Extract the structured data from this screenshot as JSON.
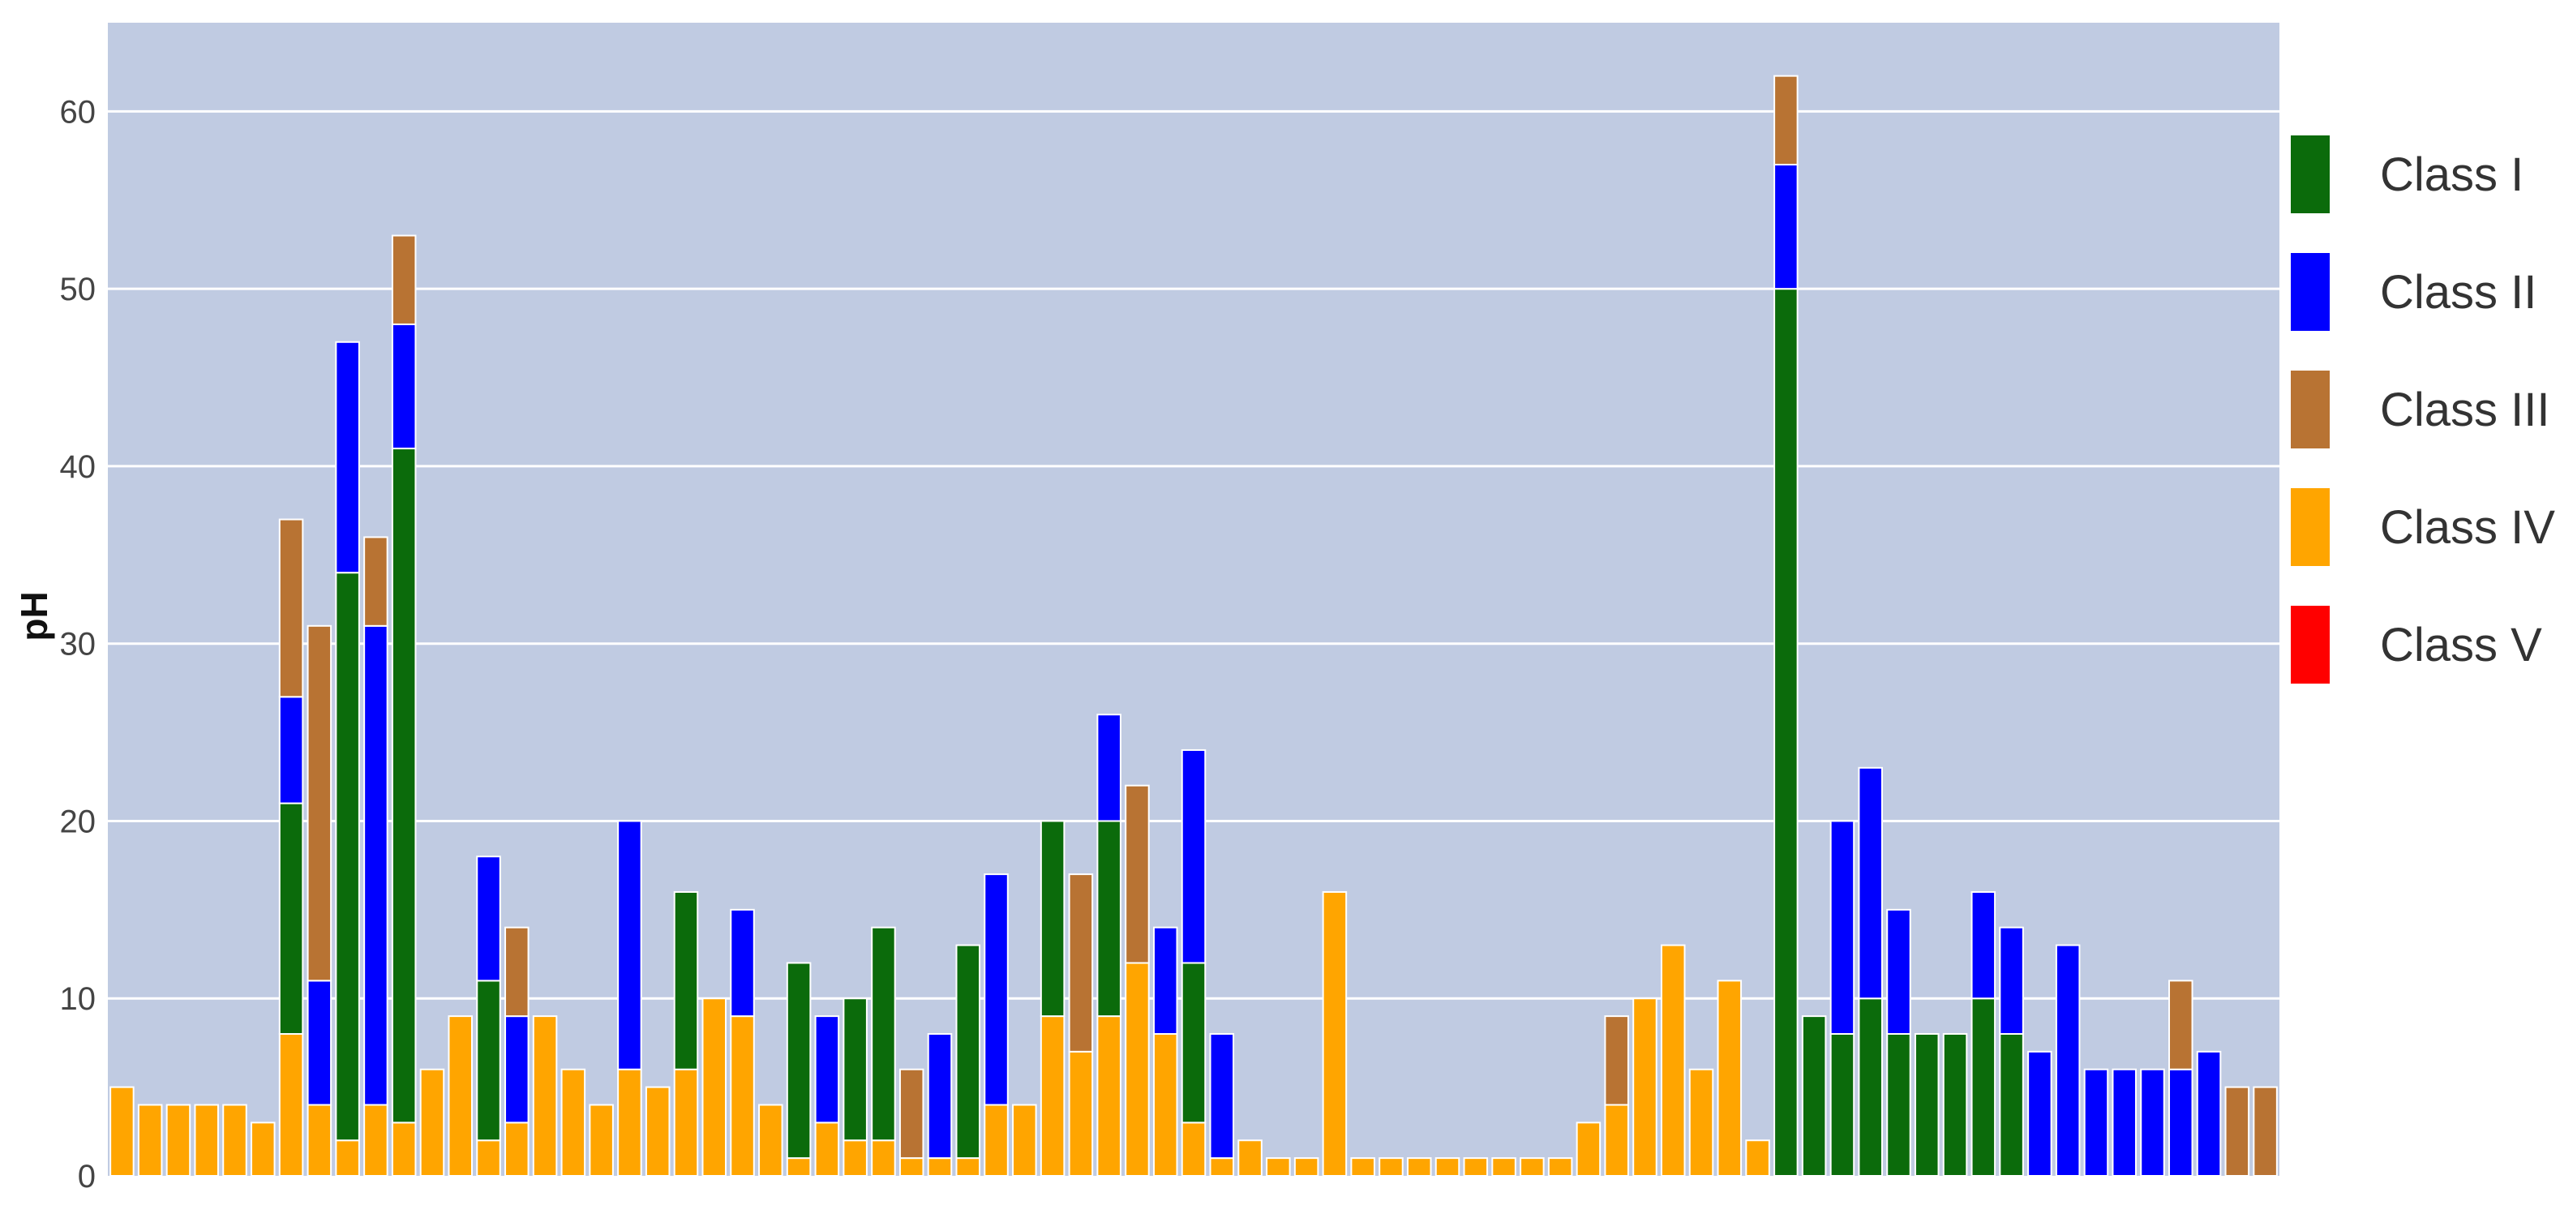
{
  "chart_data": {
    "type": "bar",
    "stacked": true,
    "ylabel": "pH",
    "ylim": [
      0,
      65
    ],
    "yticks": [
      0,
      10,
      20,
      30,
      40,
      50,
      60
    ],
    "grid": true,
    "legend_position": "right",
    "series": [
      {
        "name": "Class I",
        "color": "#0b6b0b"
      },
      {
        "name": "Class II",
        "color": "#0000ff"
      },
      {
        "name": "Class III",
        "color": "#b87333"
      },
      {
        "name": "Class IV",
        "color": "#ffa500"
      },
      {
        "name": "Class V",
        "color": "#ff0000"
      }
    ],
    "bars": [
      {
        "segments": [
          [
            "Class IV",
            5
          ]
        ]
      },
      {
        "segments": [
          [
            "Class IV",
            4
          ]
        ]
      },
      {
        "segments": [
          [
            "Class IV",
            4
          ]
        ]
      },
      {
        "segments": [
          [
            "Class IV",
            4
          ]
        ]
      },
      {
        "segments": [
          [
            "Class IV",
            4
          ]
        ]
      },
      {
        "segments": [
          [
            "Class IV",
            3
          ]
        ]
      },
      {
        "segments": [
          [
            "Class IV",
            8
          ],
          [
            "Class I",
            13
          ],
          [
            "Class II",
            6
          ],
          [
            "Class III",
            10
          ]
        ]
      },
      {
        "segments": [
          [
            "Class IV",
            4
          ],
          [
            "Class II",
            7
          ],
          [
            "Class III",
            20
          ]
        ]
      },
      {
        "segments": [
          [
            "Class IV",
            2
          ],
          [
            "Class I",
            32
          ],
          [
            "Class II",
            13
          ]
        ]
      },
      {
        "segments": [
          [
            "Class IV",
            4
          ],
          [
            "Class II",
            27
          ],
          [
            "Class III",
            5
          ]
        ]
      },
      {
        "segments": [
          [
            "Class IV",
            3
          ],
          [
            "Class I",
            38
          ],
          [
            "Class II",
            7
          ],
          [
            "Class III",
            5
          ]
        ]
      },
      {
        "segments": [
          [
            "Class IV",
            6
          ]
        ]
      },
      {
        "segments": [
          [
            "Class IV",
            9
          ]
        ]
      },
      {
        "segments": [
          [
            "Class IV",
            2
          ],
          [
            "Class I",
            9
          ],
          [
            "Class II",
            7
          ]
        ]
      },
      {
        "segments": [
          [
            "Class IV",
            3
          ],
          [
            "Class II",
            6
          ],
          [
            "Class III",
            5
          ]
        ]
      },
      {
        "segments": [
          [
            "Class IV",
            9
          ]
        ]
      },
      {
        "segments": [
          [
            "Class IV",
            6
          ]
        ]
      },
      {
        "segments": [
          [
            "Class IV",
            4
          ]
        ]
      },
      {
        "segments": [
          [
            "Class IV",
            6
          ],
          [
            "Class II",
            14
          ]
        ]
      },
      {
        "segments": [
          [
            "Class IV",
            5
          ]
        ]
      },
      {
        "segments": [
          [
            "Class IV",
            6
          ],
          [
            "Class I",
            10
          ]
        ]
      },
      {
        "segments": [
          [
            "Class IV",
            10
          ]
        ]
      },
      {
        "segments": [
          [
            "Class IV",
            9
          ],
          [
            "Class II",
            6
          ]
        ]
      },
      {
        "segments": [
          [
            "Class IV",
            4
          ]
        ]
      },
      {
        "segments": [
          [
            "Class IV",
            1
          ],
          [
            "Class I",
            11
          ]
        ]
      },
      {
        "segments": [
          [
            "Class IV",
            3
          ],
          [
            "Class II",
            6
          ]
        ]
      },
      {
        "segments": [
          [
            "Class IV",
            2
          ],
          [
            "Class I",
            8
          ]
        ]
      },
      {
        "segments": [
          [
            "Class IV",
            2
          ],
          [
            "Class I",
            12
          ]
        ]
      },
      {
        "segments": [
          [
            "Class IV",
            1
          ],
          [
            "Class III",
            5
          ]
        ]
      },
      {
        "segments": [
          [
            "Class IV",
            1
          ],
          [
            "Class II",
            7
          ]
        ]
      },
      {
        "segments": [
          [
            "Class IV",
            1
          ],
          [
            "Class I",
            12
          ]
        ]
      },
      {
        "segments": [
          [
            "Class IV",
            4
          ],
          [
            "Class II",
            13
          ]
        ]
      },
      {
        "segments": [
          [
            "Class IV",
            4
          ]
        ]
      },
      {
        "segments": [
          [
            "Class IV",
            9
          ],
          [
            "Class I",
            11
          ]
        ]
      },
      {
        "segments": [
          [
            "Class IV",
            7
          ],
          [
            "Class III",
            10
          ]
        ]
      },
      {
        "segments": [
          [
            "Class IV",
            9
          ],
          [
            "Class I",
            11
          ],
          [
            "Class II",
            6
          ]
        ]
      },
      {
        "segments": [
          [
            "Class IV",
            12
          ],
          [
            "Class III",
            10
          ]
        ]
      },
      {
        "segments": [
          [
            "Class IV",
            8
          ],
          [
            "Class II",
            6
          ]
        ]
      },
      {
        "segments": [
          [
            "Class IV",
            3
          ],
          [
            "Class I",
            9
          ],
          [
            "Class II",
            12
          ]
        ]
      },
      {
        "segments": [
          [
            "Class IV",
            1
          ],
          [
            "Class II",
            7
          ]
        ]
      },
      {
        "segments": [
          [
            "Class IV",
            2
          ]
        ]
      },
      {
        "segments": [
          [
            "Class IV",
            1
          ]
        ]
      },
      {
        "segments": [
          [
            "Class IV",
            1
          ]
        ]
      },
      {
        "segments": [
          [
            "Class IV",
            16
          ]
        ]
      },
      {
        "segments": [
          [
            "Class IV",
            1
          ]
        ]
      },
      {
        "segments": [
          [
            "Class IV",
            1
          ]
        ]
      },
      {
        "segments": [
          [
            "Class IV",
            1
          ]
        ]
      },
      {
        "segments": [
          [
            "Class IV",
            1
          ]
        ]
      },
      {
        "segments": [
          [
            "Class IV",
            1
          ]
        ]
      },
      {
        "segments": [
          [
            "Class IV",
            1
          ]
        ]
      },
      {
        "segments": [
          [
            "Class IV",
            1
          ]
        ]
      },
      {
        "segments": [
          [
            "Class IV",
            1
          ]
        ]
      },
      {
        "segments": [
          [
            "Class IV",
            3
          ]
        ]
      },
      {
        "segments": [
          [
            "Class IV",
            4
          ],
          [
            "Class III",
            5
          ]
        ]
      },
      {
        "segments": [
          [
            "Class IV",
            10
          ]
        ]
      },
      {
        "segments": [
          [
            "Class IV",
            13
          ]
        ]
      },
      {
        "segments": [
          [
            "Class IV",
            6
          ]
        ]
      },
      {
        "segments": [
          [
            "Class IV",
            11
          ]
        ]
      },
      {
        "segments": [
          [
            "Class IV",
            2
          ]
        ]
      },
      {
        "segments": [
          [
            "Class I",
            50
          ],
          [
            "Class II",
            7
          ],
          [
            "Class III",
            5
          ]
        ]
      },
      {
        "segments": [
          [
            "Class I",
            9
          ]
        ]
      },
      {
        "segments": [
          [
            "Class I",
            8
          ],
          [
            "Class II",
            12
          ]
        ]
      },
      {
        "segments": [
          [
            "Class I",
            10
          ],
          [
            "Class II",
            13
          ]
        ]
      },
      {
        "segments": [
          [
            "Class I",
            8
          ],
          [
            "Class II",
            7
          ]
        ]
      },
      {
        "segments": [
          [
            "Class I",
            8
          ]
        ]
      },
      {
        "segments": [
          [
            "Class I",
            8
          ]
        ]
      },
      {
        "segments": [
          [
            "Class I",
            10
          ],
          [
            "Class II",
            6
          ]
        ]
      },
      {
        "segments": [
          [
            "Class I",
            8
          ],
          [
            "Class II",
            6
          ]
        ]
      },
      {
        "segments": [
          [
            "Class II",
            7
          ]
        ]
      },
      {
        "segments": [
          [
            "Class II",
            13
          ]
        ]
      },
      {
        "segments": [
          [
            "Class II",
            6
          ]
        ]
      },
      {
        "segments": [
          [
            "Class II",
            6
          ]
        ]
      },
      {
        "segments": [
          [
            "Class II",
            6
          ]
        ]
      },
      {
        "segments": [
          [
            "Class II",
            6
          ],
          [
            "Class III",
            5
          ]
        ]
      },
      {
        "segments": [
          [
            "Class II",
            7
          ]
        ]
      },
      {
        "segments": [
          [
            "Class III",
            5
          ]
        ]
      },
      {
        "segments": [
          [
            "Class III",
            5
          ]
        ]
      }
    ]
  }
}
